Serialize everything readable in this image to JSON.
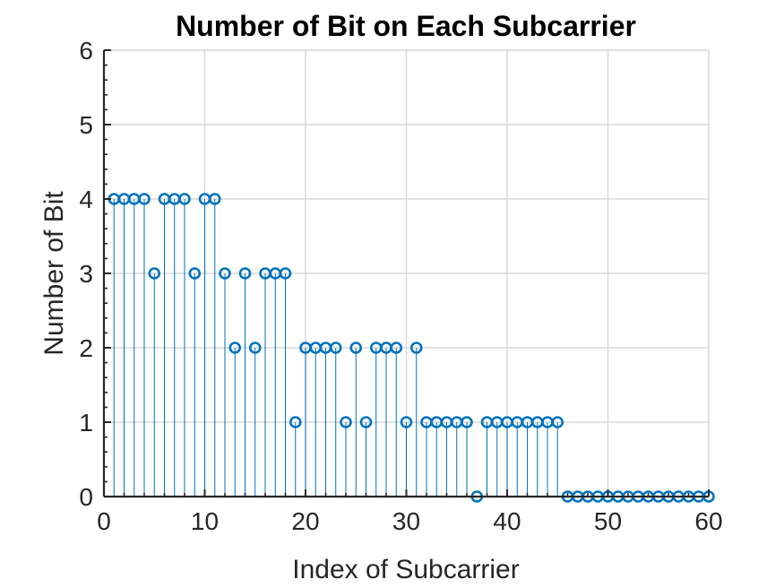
{
  "chart_data": {
    "type": "stem",
    "title": "Number of Bit on Each Subcarrier",
    "xlabel": "Index of Subcarrier",
    "ylabel": "Number of Bit",
    "xlim": [
      0,
      60
    ],
    "ylim": [
      0,
      6
    ],
    "xticks": [
      0,
      10,
      20,
      30,
      40,
      50,
      60
    ],
    "yticks": [
      0,
      1,
      2,
      3,
      4,
      5,
      6
    ],
    "grid": true,
    "x": [
      1,
      2,
      3,
      4,
      5,
      6,
      7,
      8,
      9,
      10,
      11,
      12,
      13,
      14,
      15,
      16,
      17,
      18,
      19,
      20,
      21,
      22,
      23,
      24,
      25,
      26,
      27,
      28,
      29,
      30,
      31,
      32,
      33,
      34,
      35,
      36,
      37,
      38,
      39,
      40,
      41,
      42,
      43,
      44,
      45,
      46,
      47,
      48,
      49,
      50,
      51,
      52,
      53,
      54,
      55,
      56,
      57,
      58,
      59,
      60
    ],
    "values": [
      4,
      4,
      4,
      4,
      3,
      4,
      4,
      4,
      3,
      4,
      4,
      3,
      2,
      3,
      2,
      3,
      3,
      3,
      1,
      2,
      2,
      2,
      2,
      1,
      2,
      1,
      2,
      2,
      2,
      1,
      2,
      1,
      1,
      1,
      1,
      1,
      0,
      1,
      1,
      1,
      1,
      1,
      1,
      1,
      1,
      0,
      0,
      0,
      0,
      0,
      0,
      0,
      0,
      0,
      0,
      0,
      0,
      0,
      0,
      0
    ],
    "colors": {
      "series": "#0072bd",
      "grid": "#d9d9d9",
      "axis": "#262626"
    }
  }
}
